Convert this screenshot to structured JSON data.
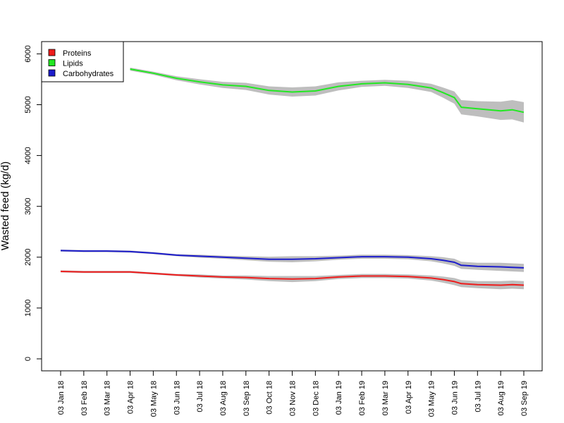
{
  "chart_data": {
    "type": "line",
    "title": "",
    "xlabel": "",
    "ylabel": "Wasted feed (kg/d)",
    "ylim": [
      0,
      6000
    ],
    "yticks": [
      0,
      1000,
      2000,
      3000,
      4000,
      5000,
      6000
    ],
    "x_tick_labels": [
      "03 Jan 18",
      "03 Feb 18",
      "03 Mar 18",
      "03 Apr 18",
      "03 May 18",
      "03 Jun 18",
      "03 Jul 18",
      "03 Aug 18",
      "03 Sep 18",
      "03 Oct 18",
      "03 Nov 18",
      "03 Dec 18",
      "03 Jan 19",
      "03 Feb 19",
      "03 Mar 19",
      "03 Apr 19",
      "03 May 19",
      "03 Jun 19",
      "03 Jul 19",
      "03 Aug 19",
      "03 Sep 19"
    ],
    "legend": {
      "position": "top-left",
      "entries": [
        "Proteins",
        "Lipids",
        "Carbohydrates"
      ]
    },
    "band_color": "#bebebe",
    "series": [
      {
        "name": "Proteins",
        "color": "#ee1c1c",
        "x": [
          0,
          1,
          2,
          3,
          4,
          5,
          6,
          7,
          8,
          9,
          10,
          11,
          12,
          13,
          14,
          15,
          16,
          16.5,
          17,
          17.3,
          18,
          19,
          19.5,
          20
        ],
        "values": [
          1720,
          1710,
          1710,
          1710,
          1680,
          1650,
          1630,
          1610,
          1600,
          1580,
          1570,
          1580,
          1610,
          1630,
          1630,
          1620,
          1590,
          1560,
          1520,
          1480,
          1460,
          1450,
          1460,
          1450
        ],
        "band": [
          20,
          20,
          20,
          20,
          20,
          20,
          30,
          30,
          40,
          50,
          60,
          50,
          40,
          40,
          40,
          40,
          50,
          60,
          70,
          70,
          70,
          80,
          80,
          80
        ]
      },
      {
        "name": "Lipids",
        "color": "#22e822",
        "x": [
          3,
          4,
          5,
          6,
          7,
          8,
          9,
          10,
          11,
          12,
          13,
          14,
          15,
          16,
          16.5,
          17,
          17.3,
          18,
          19,
          19.5,
          20
        ],
        "values": [
          5700,
          5620,
          5520,
          5450,
          5390,
          5360,
          5280,
          5250,
          5270,
          5360,
          5410,
          5430,
          5400,
          5330,
          5240,
          5140,
          4950,
          4920,
          4880,
          4900,
          4850
        ],
        "band": [
          30,
          30,
          40,
          50,
          60,
          70,
          80,
          90,
          90,
          80,
          60,
          60,
          70,
          80,
          100,
          120,
          140,
          150,
          180,
          190,
          200
        ]
      },
      {
        "name": "Carbohydrates",
        "color": "#1c1ccc",
        "x": [
          0,
          1,
          2,
          3,
          4,
          5,
          6,
          7,
          8,
          9,
          10,
          11,
          12,
          13,
          14,
          15,
          16,
          16.5,
          17,
          17.3,
          18,
          19,
          19.5,
          20
        ],
        "values": [
          2130,
          2120,
          2120,
          2110,
          2080,
          2040,
          2020,
          2000,
          1980,
          1960,
          1960,
          1970,
          1990,
          2010,
          2010,
          2000,
          1970,
          1940,
          1900,
          1840,
          1820,
          1810,
          1800,
          1790
        ],
        "band": [
          20,
          20,
          20,
          20,
          20,
          20,
          30,
          30,
          40,
          50,
          60,
          50,
          40,
          40,
          40,
          40,
          50,
          60,
          70,
          70,
          70,
          80,
          80,
          80
        ]
      }
    ]
  }
}
